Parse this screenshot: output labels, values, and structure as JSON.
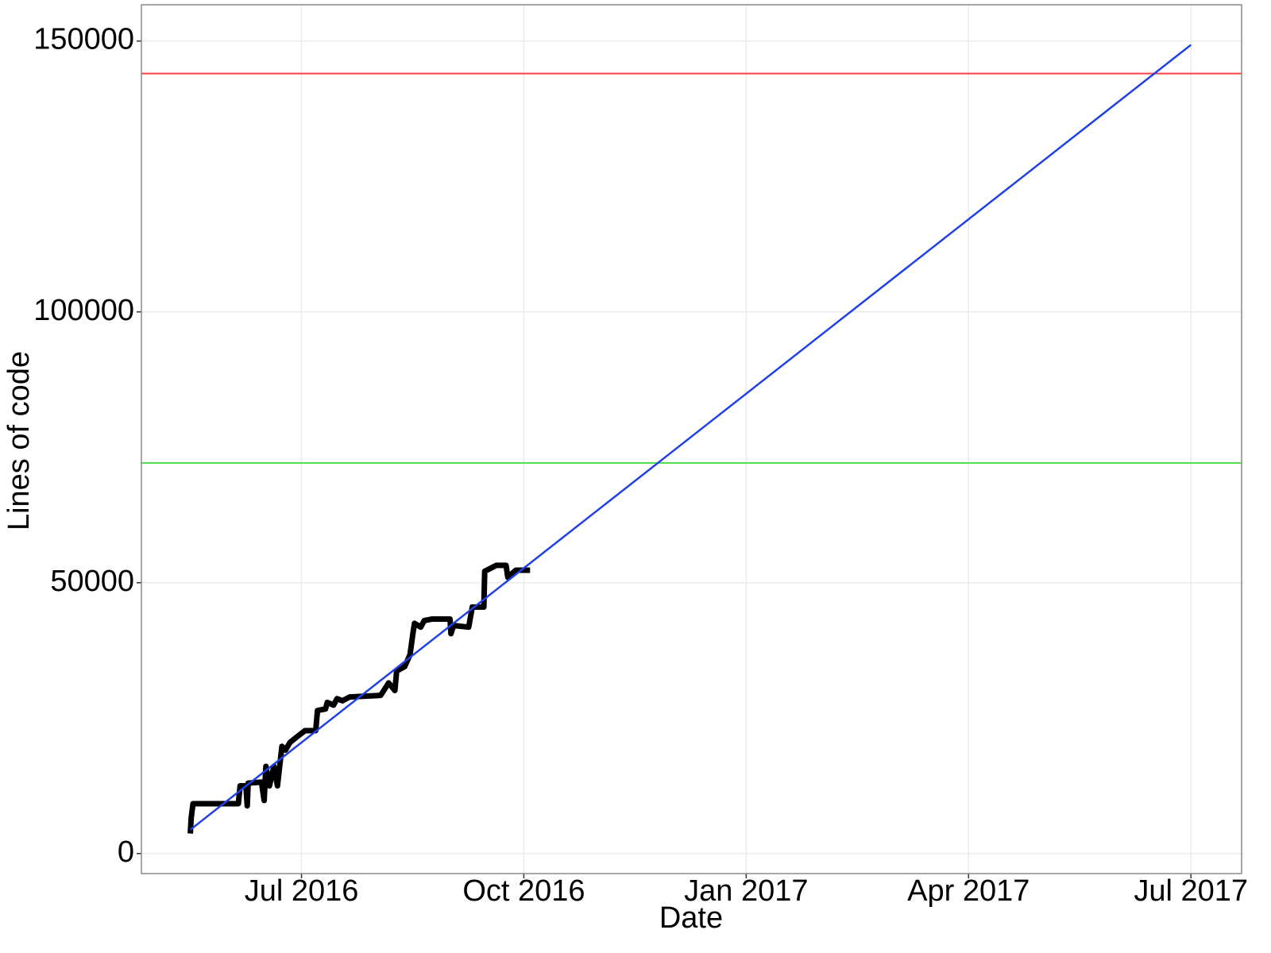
{
  "chart_data": {
    "type": "line",
    "x_label": "Date",
    "y_label": "Lines of code",
    "xlim": [
      2016.32,
      2017.557
    ],
    "ylim": [
      -3700,
      156700
    ],
    "xticks": [
      {
        "value": 2016.5,
        "label": "Jul 2016"
      },
      {
        "value": 2016.75,
        "label": "Oct 2016"
      },
      {
        "value": 2017.0,
        "label": "Jan 2017"
      },
      {
        "value": 2017.25,
        "label": "Apr 2017"
      },
      {
        "value": 2017.5,
        "label": "Jul 2017"
      }
    ],
    "yticks": [
      0,
      50000,
      100000,
      150000
    ],
    "grid": true,
    "series": [
      {
        "color": "#000000",
        "width": 7,
        "x": [
          2016.375,
          2016.376,
          2016.378,
          2016.429,
          2016.431,
          2016.4375,
          2016.439,
          2016.44,
          2016.455,
          2016.458,
          2016.46,
          2016.464,
          2016.469,
          2016.473,
          2016.478,
          2016.482,
          2016.487,
          2016.493,
          2016.504,
          2016.516,
          2016.518,
          2016.527,
          2016.529,
          2016.536,
          2016.54,
          2016.546,
          2016.554,
          2016.589,
          2016.598,
          2016.605,
          2016.607,
          2016.616,
          2016.622,
          2016.625,
          2016.627,
          2016.634,
          2016.638,
          2016.647,
          2016.667,
          2016.668,
          2016.671,
          2016.688,
          2016.692,
          2016.705,
          2016.706,
          2016.719,
          2016.73,
          2016.732,
          2016.741,
          2016.757
        ],
        "values": [
          3700,
          6600,
          9200,
          9200,
          12500,
          12500,
          8800,
          13000,
          13200,
          9800,
          16100,
          12500,
          16100,
          12500,
          19800,
          19100,
          20500,
          21300,
          22700,
          22700,
          26400,
          26700,
          27900,
          27400,
          28600,
          28200,
          28900,
          29200,
          31500,
          30100,
          33700,
          34500,
          36700,
          40300,
          42500,
          41800,
          43000,
          43300,
          43300,
          40600,
          42100,
          41800,
          45500,
          45500,
          52100,
          53200,
          53200,
          51000,
          52300,
          52300
        ]
      },
      {
        "color": "#2040e8",
        "width": 2.5,
        "x": [
          2016.375,
          2017.5
        ],
        "values": [
          4400,
          149300
        ]
      }
    ],
    "hlines": [
      {
        "value": 144000,
        "color": "#ff4040"
      },
      {
        "value": 72100,
        "color": "#50e050"
      }
    ]
  }
}
